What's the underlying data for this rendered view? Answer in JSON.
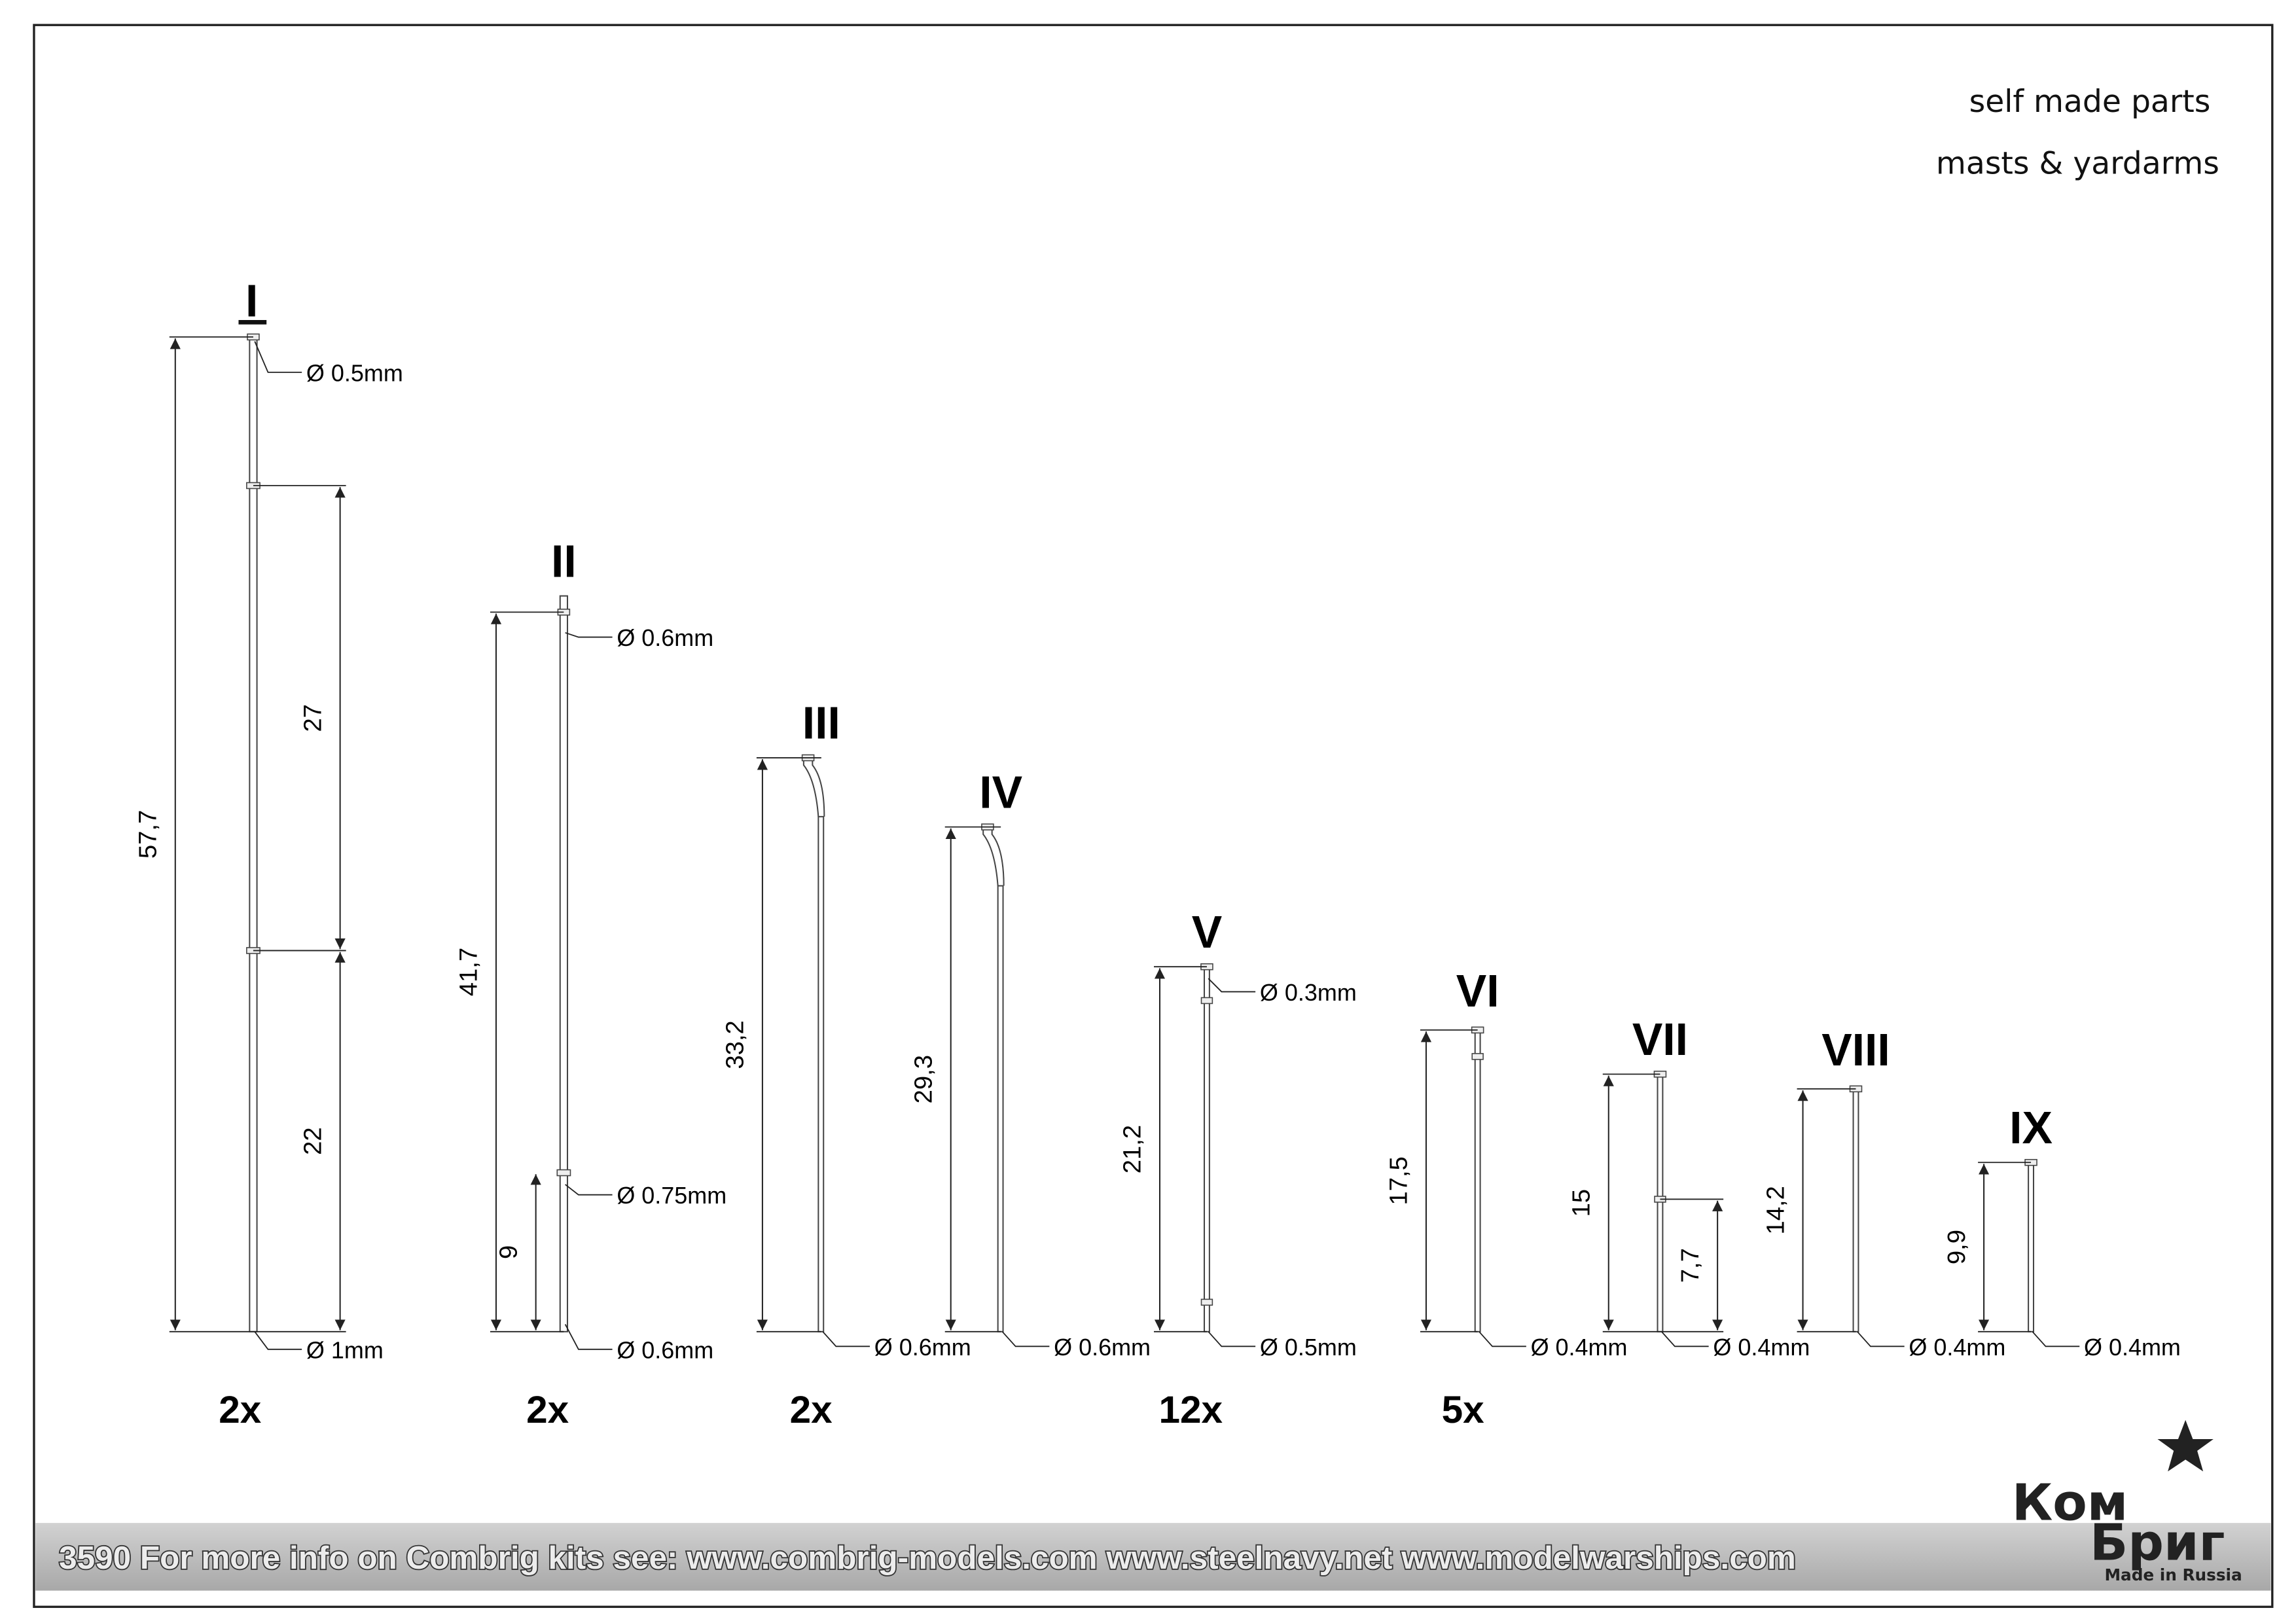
{
  "header": {
    "line1": "self made parts",
    "line2": "masts & yardarms"
  },
  "parts": [
    {
      "numeral": "I",
      "length": "57,7",
      "segments": [
        "27",
        "22"
      ],
      "diameters": [
        "Ø 0.5mm",
        "Ø 1mm"
      ],
      "quantity": "2x"
    },
    {
      "numeral": "II",
      "length": "41,7",
      "segments": [
        "9"
      ],
      "diameters": [
        "Ø 0.6mm",
        "Ø 0.75mm",
        "Ø 0.6mm"
      ],
      "quantity": "2x"
    },
    {
      "numeral": "III",
      "length": "33,2",
      "diameters": [
        "Ø 0.6mm"
      ],
      "quantity": "2x"
    },
    {
      "numeral": "IV",
      "length": "29,3",
      "diameters": [
        "Ø 0.6mm"
      ]
    },
    {
      "numeral": "V",
      "length": "21,2",
      "diameters": [
        "Ø 0.3mm",
        "Ø 0.5mm"
      ],
      "quantity": "12x"
    },
    {
      "numeral": "VI",
      "length": "17,5",
      "diameters": [
        "Ø 0.4mm"
      ],
      "quantity": "5x"
    },
    {
      "numeral": "VII",
      "length": "15",
      "segments": [
        "7,7"
      ],
      "diameters": [
        "Ø 0.4mm"
      ]
    },
    {
      "numeral": "VIII",
      "length": "14,2",
      "diameters": [
        "Ø 0.4mm"
      ]
    },
    {
      "numeral": "IX",
      "length": "9,9",
      "diameters": [
        "Ø 0.4mm"
      ]
    }
  ],
  "footer": {
    "text": "3590  For more info on Combrig kits see: www.combrig-models.com www.steelnavy.net  www.modelwarships.com"
  },
  "logo": {
    "line1": "Ком",
    "line2": "Бриг",
    "tagline": "Made in Russia"
  }
}
